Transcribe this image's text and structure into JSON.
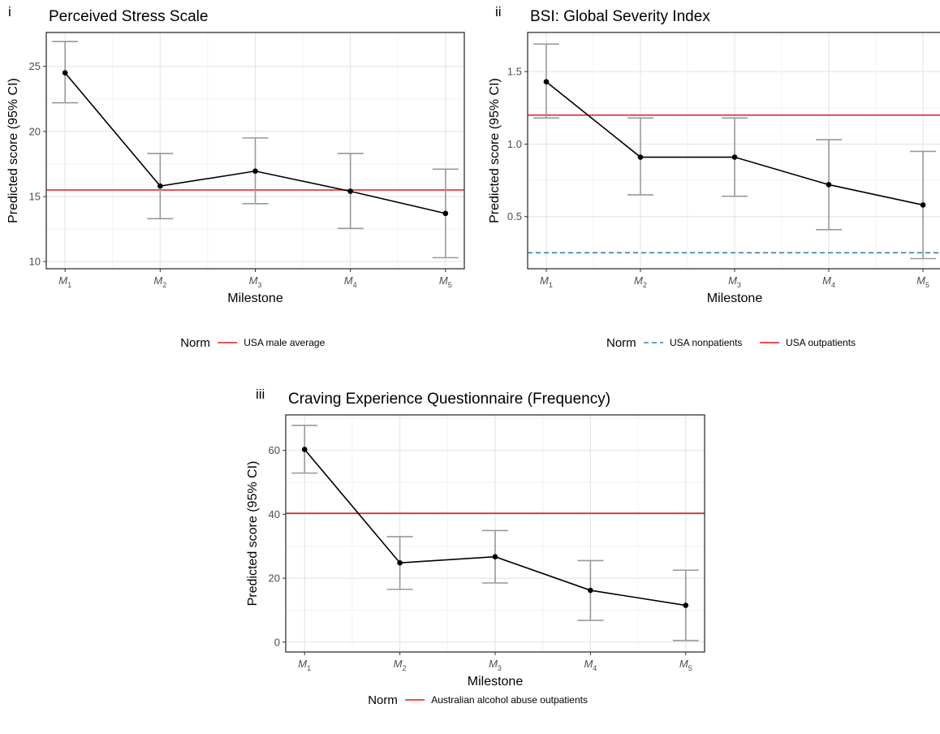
{
  "chart_data": [
    {
      "type": "line",
      "panel_tag": "i",
      "title": "Perceived Stress Scale",
      "xlabel": "Milestone",
      "ylabel": "Predicted score (95% CI)",
      "categories": [
        "M1",
        "M2",
        "M3",
        "M4",
        "M5"
      ],
      "yticks": [
        10,
        15,
        20,
        25
      ],
      "ylim": [
        9.45,
        27.6
      ],
      "series": [
        {
          "values": [
            24.5,
            15.8,
            16.95,
            15.4,
            13.7
          ],
          "lower": [
            22.2,
            13.3,
            14.45,
            12.55,
            10.3
          ],
          "upper": [
            26.9,
            18.3,
            19.5,
            18.3,
            17.1
          ]
        }
      ],
      "norms": [
        {
          "name": "USA male average",
          "value": 15.5,
          "color": "#e41a1c",
          "dash": "solid"
        }
      ],
      "legend_title": "Norm",
      "legend_position": "bottom",
      "grid": true
    },
    {
      "type": "line",
      "panel_tag": "ii",
      "title": "BSI: Global Severity Index",
      "xlabel": "Milestone",
      "ylabel": "Predicted score (95% CI)",
      "categories": [
        "M1",
        "M2",
        "M3",
        "M4",
        "M5"
      ],
      "yticks": [
        0.5,
        1.0,
        1.5
      ],
      "ylim": [
        0.14,
        1.77
      ],
      "series": [
        {
          "values": [
            1.43,
            0.91,
            0.91,
            0.72,
            0.58
          ],
          "lower": [
            1.18,
            0.65,
            0.64,
            0.41,
            0.21
          ],
          "upper": [
            1.69,
            1.18,
            1.18,
            1.03,
            0.95
          ]
        }
      ],
      "norms": [
        {
          "name": "USA nonpatients",
          "value": 0.25,
          "color": "#3182bd",
          "dash": "dashed"
        },
        {
          "name": "USA outpatients",
          "value": 1.2,
          "color": "#e41a1c",
          "dash": "solid"
        }
      ],
      "legend_title": "Norm",
      "legend_position": "bottom",
      "grid": true
    },
    {
      "type": "line",
      "panel_tag": "iii",
      "title": "Craving Experience Questionnaire (Frequency)",
      "xlabel": "Milestone",
      "ylabel": "Predicted score (95% CI)",
      "categories": [
        "M1",
        "M2",
        "M3",
        "M4",
        "M5"
      ],
      "yticks": [
        0,
        20,
        40,
        60
      ],
      "ylim": [
        -3.1,
        71.1
      ],
      "series": [
        {
          "values": [
            60.3,
            24.8,
            26.7,
            16.2,
            11.5
          ],
          "lower": [
            52.9,
            16.5,
            18.5,
            6.8,
            0.5
          ],
          "upper": [
            67.8,
            33.0,
            34.9,
            25.5,
            22.5
          ]
        }
      ],
      "norms": [
        {
          "name": "Australian alcohol abuse outpatients",
          "value": 40.3,
          "color": "#e41a1c",
          "dash": "solid"
        }
      ],
      "legend_title": "Norm",
      "legend_position": "bottom",
      "grid": true
    }
  ]
}
